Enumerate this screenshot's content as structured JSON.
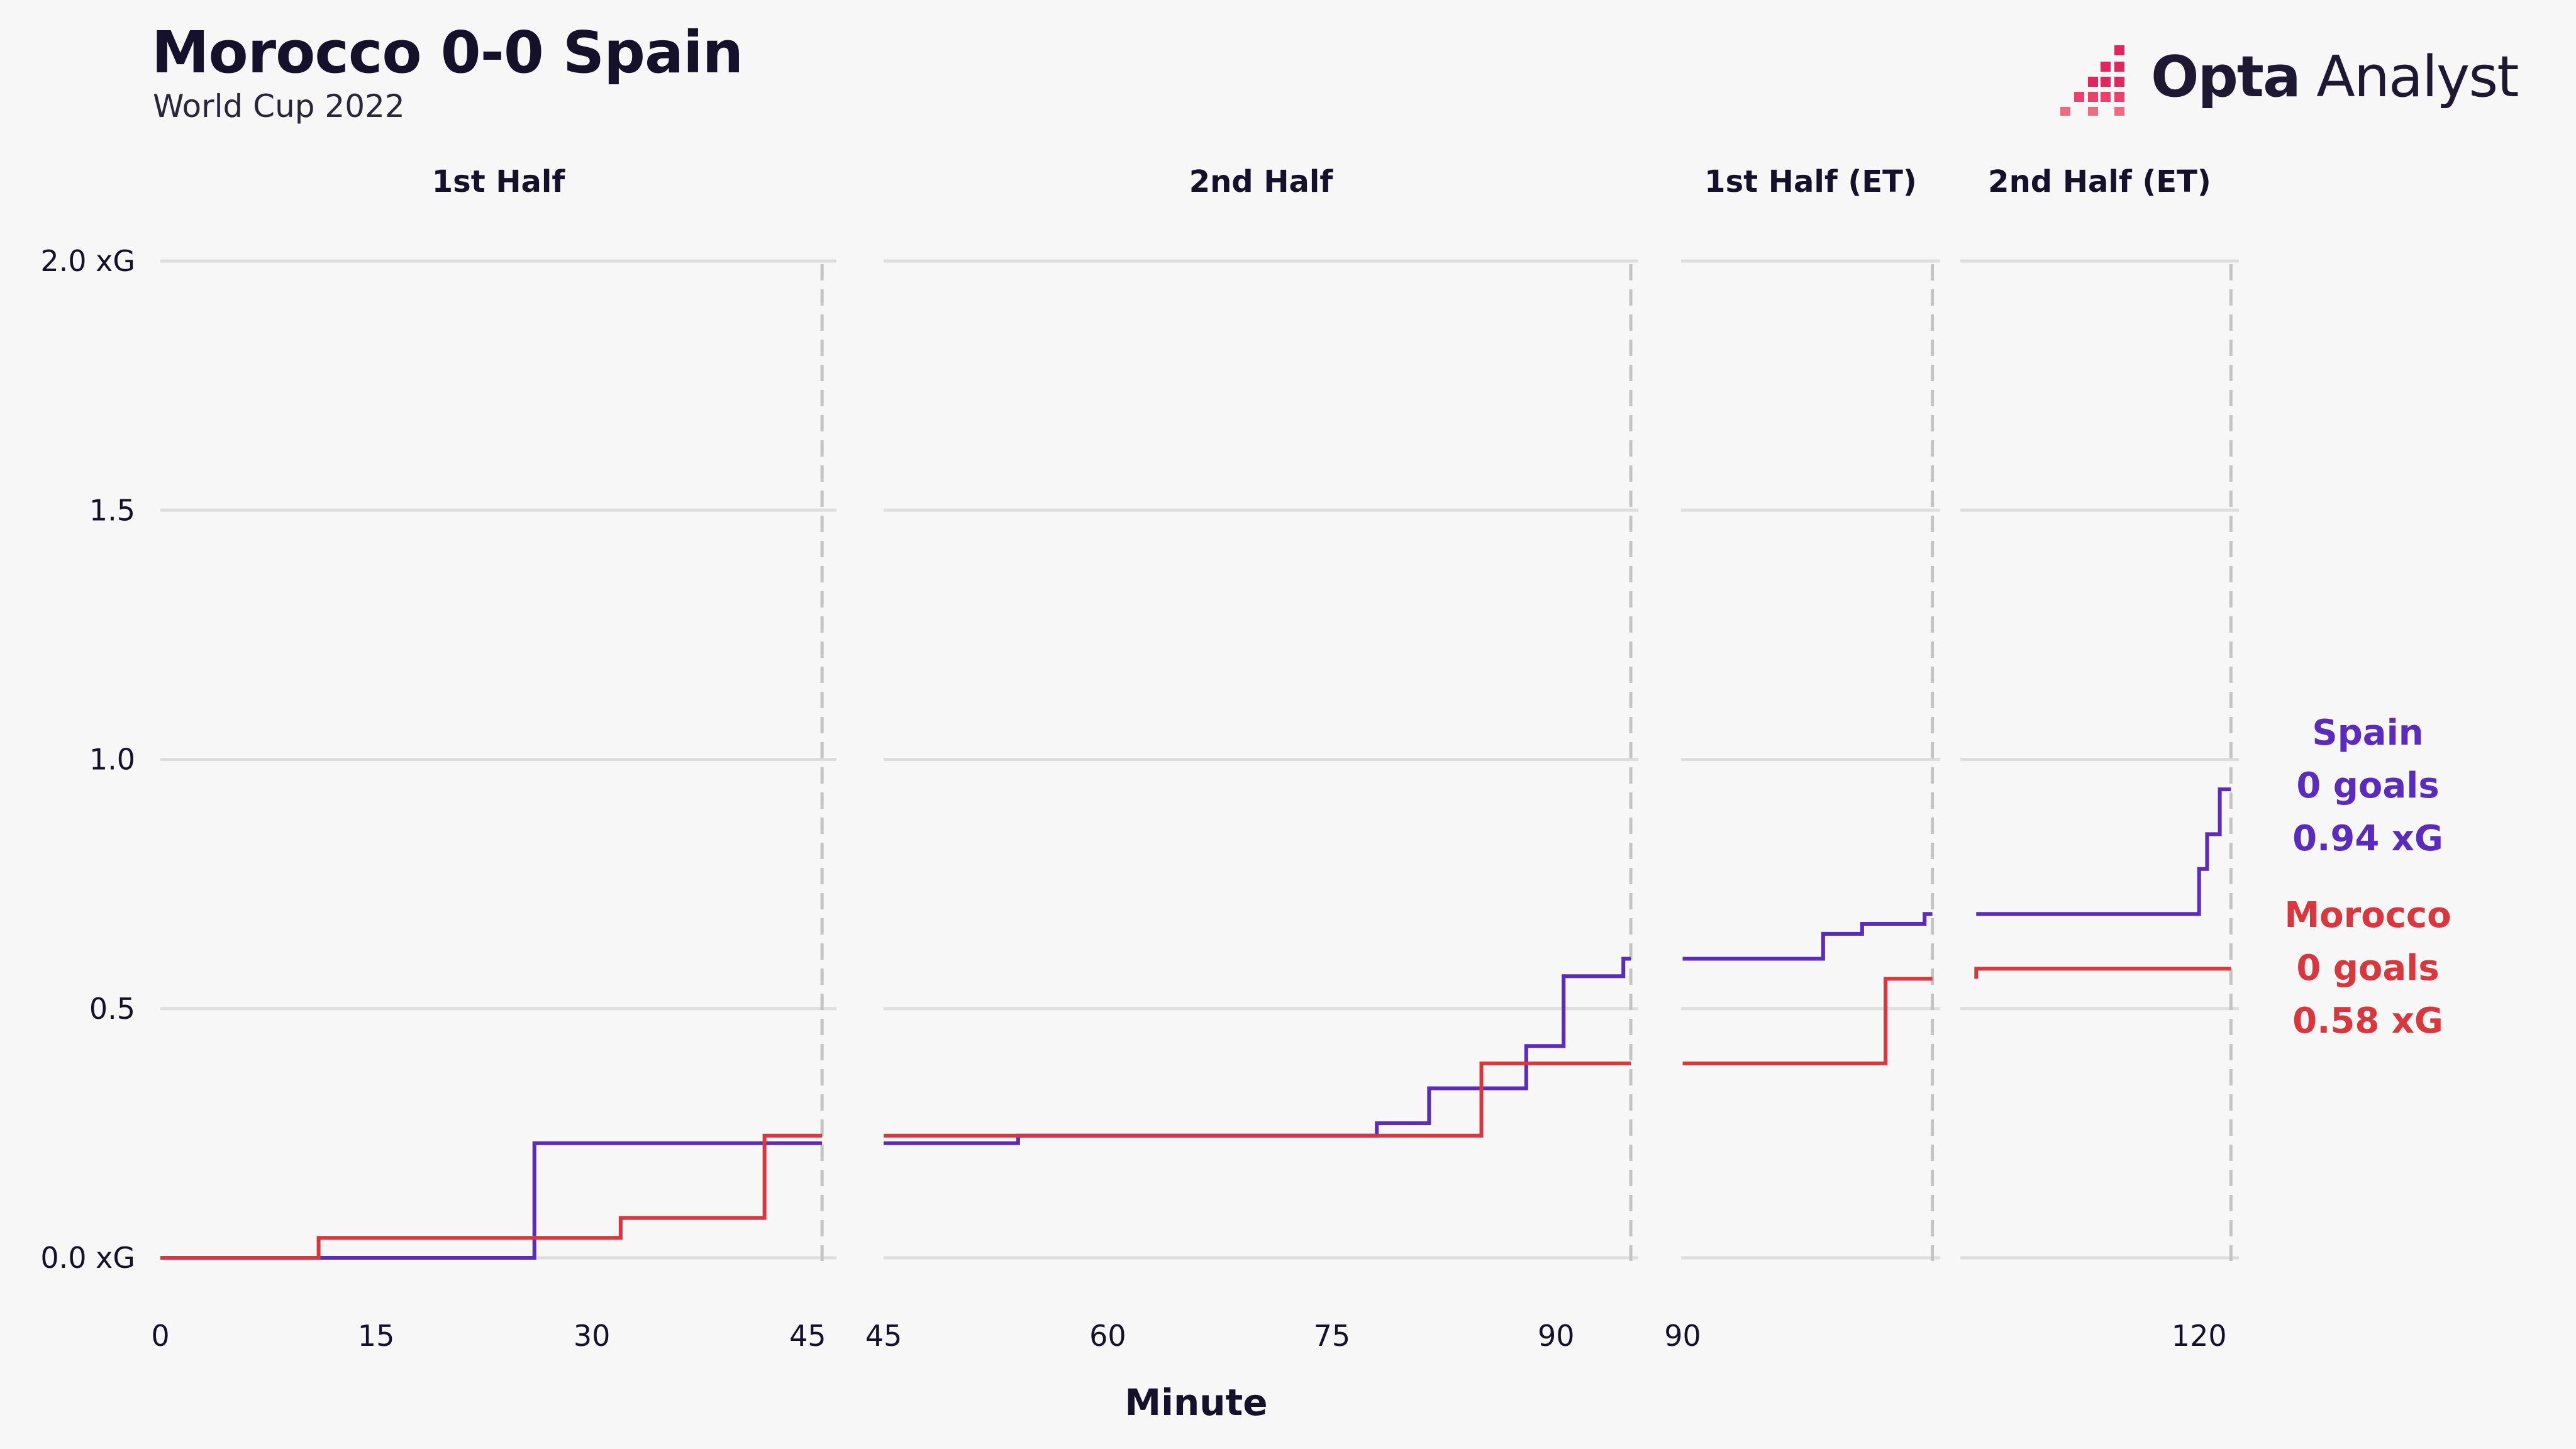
{
  "header": {
    "title": "Morocco 0-0 Spain",
    "subtitle": "World Cup 2022"
  },
  "logo": {
    "brand_bold": "Opta",
    "brand_light": "Analyst",
    "icon": "opta-pixel-logo-icon"
  },
  "colors": {
    "spain": "#5b2bbd",
    "morocco": "#d9363e",
    "grid": "#dedede",
    "dashed": "#c4c4c4",
    "text": "#15112b",
    "background": "#f7f7f7"
  },
  "chart_data": {
    "type": "line",
    "step": true,
    "xlabel": "Minute",
    "ylim": [
      0,
      2.0
    ],
    "y_ticks": [
      {
        "value": 0,
        "label": "0.0 xG"
      },
      {
        "value": 0.5,
        "label": "0.5"
      },
      {
        "value": 1.0,
        "label": "1.0"
      },
      {
        "value": 1.5,
        "label": "1.5"
      },
      {
        "value": 2.0,
        "label": "2.0 xG"
      }
    ],
    "grid": true,
    "legend_placement": "right",
    "panels": [
      {
        "title": "1st Half",
        "xlim": [
          0,
          47
        ],
        "end_marker": 46,
        "x_ticks": [
          0,
          15,
          30,
          45
        ],
        "series": [
          {
            "name": "Spain",
            "points": [
              [
                0,
                0.0
              ],
              [
                26,
                0.0
              ],
              [
                26,
                0.23
              ],
              [
                46,
                0.23
              ]
            ]
          },
          {
            "name": "Morocco",
            "points": [
              [
                0,
                0.0
              ],
              [
                11,
                0.0
              ],
              [
                11,
                0.04
              ],
              [
                32,
                0.04
              ],
              [
                32,
                0.08
              ],
              [
                42,
                0.08
              ],
              [
                42,
                0.245
              ],
              [
                46,
                0.245
              ]
            ]
          }
        ]
      },
      {
        "title": "2nd Half",
        "xlim": [
          45,
          95.5
        ],
        "end_marker": 95,
        "x_ticks": [
          45,
          60,
          75,
          90
        ],
        "series": [
          {
            "name": "Spain",
            "points": [
              [
                45,
                0.23
              ],
              [
                54,
                0.23
              ],
              [
                54,
                0.245
              ],
              [
                78,
                0.245
              ],
              [
                78,
                0.27
              ],
              [
                81.5,
                0.27
              ],
              [
                81.5,
                0.34
              ],
              [
                88,
                0.34
              ],
              [
                88,
                0.425
              ],
              [
                90.5,
                0.425
              ],
              [
                90.5,
                0.565
              ],
              [
                94.5,
                0.565
              ],
              [
                94.5,
                0.6
              ],
              [
                95,
                0.6
              ]
            ]
          },
          {
            "name": "Morocco",
            "points": [
              [
                45,
                0.245
              ],
              [
                85,
                0.245
              ],
              [
                85,
                0.39
              ],
              [
                95,
                0.39
              ]
            ]
          }
        ]
      },
      {
        "title": "1st Half (ET)",
        "xlim": [
          89.9,
          106.5
        ],
        "end_marker": 106,
        "x_ticks": [
          90
        ],
        "series": [
          {
            "name": "Spain",
            "points": [
              [
                90,
                0.6
              ],
              [
                99,
                0.6
              ],
              [
                99,
                0.65
              ],
              [
                101.5,
                0.65
              ],
              [
                101.5,
                0.67
              ],
              [
                105.5,
                0.67
              ],
              [
                105.5,
                0.69
              ],
              [
                106,
                0.69
              ]
            ]
          },
          {
            "name": "Morocco",
            "points": [
              [
                90,
                0.39
              ],
              [
                103,
                0.39
              ],
              [
                103,
                0.56
              ],
              [
                106,
                0.56
              ]
            ]
          }
        ]
      },
      {
        "title": "2nd Half (ET)",
        "xlim": [
          105,
          122.5
        ],
        "end_marker": 122,
        "x_ticks": [
          120
        ],
        "series": [
          {
            "name": "Spain",
            "points": [
              [
                106,
                0.69
              ],
              [
                120,
                0.69
              ],
              [
                120,
                0.78
              ],
              [
                120.5,
                0.78
              ],
              [
                120.5,
                0.85
              ],
              [
                121.3,
                0.85
              ],
              [
                121.3,
                0.94
              ],
              [
                122,
                0.94
              ]
            ]
          },
          {
            "name": "Morocco",
            "points": [
              [
                106,
                0.56
              ],
              [
                106,
                0.58
              ],
              [
                122,
                0.58
              ]
            ]
          }
        ]
      }
    ],
    "legend": [
      {
        "team": "Spain",
        "goals": "0 goals",
        "xg": "0.94 xG",
        "color": "#5b2bbd"
      },
      {
        "team": "Morocco",
        "goals": "0 goals",
        "xg": "0.58 xG",
        "color": "#d9363e"
      }
    ]
  }
}
